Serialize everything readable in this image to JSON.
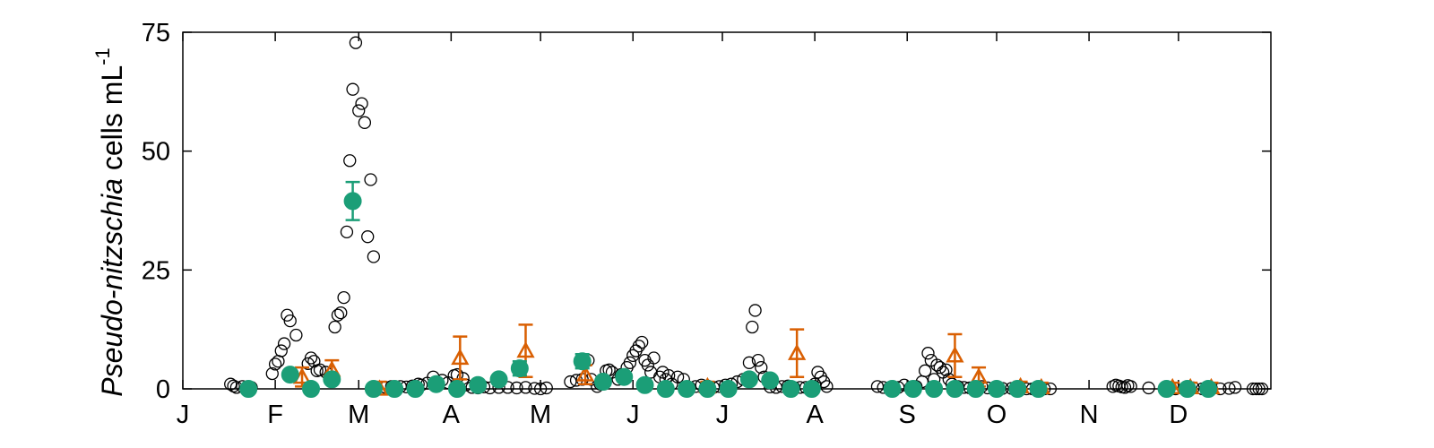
{
  "chart_data": {
    "type": "scatter",
    "title": "",
    "xlabel": "",
    "ylabel": {
      "italic": "Pseudo-nitzschia",
      "rest": " cells mL",
      "sup": "-1"
    },
    "x_unit": "day of year",
    "xlim": [
      0,
      365
    ],
    "ylim": [
      0,
      75
    ],
    "yticks": [
      0,
      25,
      50,
      75
    ],
    "xtick_labels": [
      {
        "label": "J",
        "x": 0
      },
      {
        "label": "F",
        "x": 31
      },
      {
        "label": "M",
        "x": 59
      },
      {
        "label": "A",
        "x": 90
      },
      {
        "label": "M",
        "x": 120
      },
      {
        "label": "J",
        "x": 151
      },
      {
        "label": "J",
        "x": 181
      },
      {
        "label": "A",
        "x": 212
      },
      {
        "label": "S",
        "x": 243
      },
      {
        "label": "O",
        "x": 273
      },
      {
        "label": "N",
        "x": 304
      },
      {
        "label": "D",
        "x": 334
      }
    ],
    "grid": false,
    "legend": "none",
    "colors": {
      "open": "#000000",
      "orange": "#d95f02",
      "green": "#1b9e77"
    },
    "series": [
      {
        "marker": "open-circle",
        "points": [
          [
            16,
            1.0
          ],
          [
            17,
            0.6
          ],
          [
            18,
            0.3
          ],
          [
            20,
            0.5
          ],
          [
            22,
            0.4
          ],
          [
            23,
            0.3
          ],
          [
            30,
            3.2
          ],
          [
            31,
            5.2
          ],
          [
            32,
            5.8
          ],
          [
            33,
            8.0
          ],
          [
            34,
            9.5
          ],
          [
            35,
            15.5
          ],
          [
            36,
            14.3
          ],
          [
            38,
            11.3
          ],
          [
            42,
            5.3
          ],
          [
            43,
            6.5
          ],
          [
            44,
            5.8
          ],
          [
            45,
            3.8
          ],
          [
            46,
            4.0
          ],
          [
            48,
            3.5
          ],
          [
            51,
            13.0
          ],
          [
            52,
            15.5
          ],
          [
            53,
            16.0
          ],
          [
            54,
            19.2
          ],
          [
            55,
            33.0
          ],
          [
            56,
            48.0
          ],
          [
            57,
            63.0
          ],
          [
            58,
            72.8
          ],
          [
            59,
            58.5
          ],
          [
            60,
            60.0
          ],
          [
            61,
            56.0
          ],
          [
            62,
            32.0
          ],
          [
            63,
            44.0
          ],
          [
            64,
            27.8
          ],
          [
            68,
            0.3
          ],
          [
            70,
            0.5
          ],
          [
            73,
            0.5
          ],
          [
            75,
            0.4
          ],
          [
            77,
            0.6
          ],
          [
            79,
            1.0
          ],
          [
            80,
            0.8
          ],
          [
            82,
            1.2
          ],
          [
            84,
            2.5
          ],
          [
            85,
            1.5
          ],
          [
            87,
            1.8
          ],
          [
            89,
            1.3
          ],
          [
            91,
            2.8
          ],
          [
            92,
            3.0
          ],
          [
            94,
            2.2
          ],
          [
            95,
            0.8
          ],
          [
            97,
            0.3
          ],
          [
            99,
            0.2
          ],
          [
            101,
            0.4
          ],
          [
            103,
            0.2
          ],
          [
            106,
            0.3
          ],
          [
            109,
            0.3
          ],
          [
            112,
            0.2
          ],
          [
            115,
            0.3
          ],
          [
            118,
            0.1
          ],
          [
            120,
            0.0
          ],
          [
            122,
            0.2
          ],
          [
            130,
            1.5
          ],
          [
            132,
            1.8
          ],
          [
            134,
            2.0
          ],
          [
            136,
            6.0
          ],
          [
            137,
            2.0
          ],
          [
            139,
            0.5
          ],
          [
            140,
            1.0
          ],
          [
            142,
            3.8
          ],
          [
            143,
            4.0
          ],
          [
            144,
            3.5
          ],
          [
            146,
            2.0
          ],
          [
            147,
            3.0
          ],
          [
            149,
            4.5
          ],
          [
            150,
            5.5
          ],
          [
            151,
            7.0
          ],
          [
            152,
            8.0
          ],
          [
            153,
            9.0
          ],
          [
            154,
            9.8
          ],
          [
            155,
            6.0
          ],
          [
            156,
            5.0
          ],
          [
            157,
            3.5
          ],
          [
            158,
            6.5
          ],
          [
            160,
            2.5
          ],
          [
            161,
            3.5
          ],
          [
            162,
            2.0
          ],
          [
            163,
            2.8
          ],
          [
            164,
            1.0
          ],
          [
            166,
            2.5
          ],
          [
            168,
            2.0
          ],
          [
            170,
            0.3
          ],
          [
            172,
            0.5
          ],
          [
            174,
            0.8
          ],
          [
            176,
            0.6
          ],
          [
            178,
            0.3
          ],
          [
            180,
            0.5
          ],
          [
            182,
            0.8
          ],
          [
            184,
            1.0
          ],
          [
            186,
            1.5
          ],
          [
            188,
            2.0
          ],
          [
            190,
            5.5
          ],
          [
            191,
            13.0
          ],
          [
            192,
            16.5
          ],
          [
            193,
            6.0
          ],
          [
            194,
            4.5
          ],
          [
            195,
            2.5
          ],
          [
            197,
            0.4
          ],
          [
            199,
            0.3
          ],
          [
            201,
            0.5
          ],
          [
            203,
            0.6
          ],
          [
            205,
            0.3
          ],
          [
            207,
            0.3
          ],
          [
            209,
            0.3
          ],
          [
            212,
            1.0
          ],
          [
            213,
            3.5
          ],
          [
            214,
            2.5
          ],
          [
            215,
            1.5
          ],
          [
            216,
            0.5
          ],
          [
            233,
            0.5
          ],
          [
            235,
            0.3
          ],
          [
            237,
            0.2
          ],
          [
            240,
            0.3
          ],
          [
            242,
            0.8
          ],
          [
            244,
            0.2
          ],
          [
            246,
            0.5
          ],
          [
            248,
            1.5
          ],
          [
            249,
            3.8
          ],
          [
            250,
            7.5
          ],
          [
            251,
            6.0
          ],
          [
            252,
            2.0
          ],
          [
            253,
            5.0
          ],
          [
            254,
            4.5
          ],
          [
            255,
            3.5
          ],
          [
            256,
            4.0
          ],
          [
            257,
            2.0
          ],
          [
            258,
            1.0
          ],
          [
            260,
            0.5
          ],
          [
            262,
            0.3
          ],
          [
            264,
            0.2
          ],
          [
            266,
            0.3
          ],
          [
            268,
            0.5
          ],
          [
            270,
            0.2
          ],
          [
            273,
            0.2
          ],
          [
            275,
            0.1
          ],
          [
            278,
            0.1
          ],
          [
            281,
            0.0
          ],
          [
            283,
            0.0
          ],
          [
            285,
            0.0
          ],
          [
            287,
            0.0
          ],
          [
            289,
            0.0
          ],
          [
            291,
            0.0
          ],
          [
            312,
            0.5
          ],
          [
            313,
            0.8
          ],
          [
            314,
            0.6
          ],
          [
            315,
            0.4
          ],
          [
            316,
            0.3
          ],
          [
            317,
            0.7
          ],
          [
            318,
            0.5
          ],
          [
            324,
            0.2
          ],
          [
            331,
            0.2
          ],
          [
            333,
            0.0
          ],
          [
            336,
            0.1
          ],
          [
            339,
            0.2
          ],
          [
            342,
            0.0
          ],
          [
            345,
            0.2
          ],
          [
            348,
            0.0
          ],
          [
            351,
            0.1
          ],
          [
            353,
            0.3
          ],
          [
            359,
            0.0
          ],
          [
            360,
            0.0
          ],
          [
            361,
            0.0
          ],
          [
            362,
            0.0
          ]
        ]
      },
      {
        "marker": "open-triangle-errorbar",
        "points": [
          {
            "x": 40,
            "y": 2.5,
            "err": 2.0
          },
          {
            "x": 50,
            "y": 4.0,
            "err": 2.0
          },
          {
            "x": 66,
            "y": 0.0,
            "err": 1.5
          },
          {
            "x": 93,
            "y": 6.5,
            "err": 4.5
          },
          {
            "x": 115,
            "y": 8.0,
            "err": 5.5
          },
          {
            "x": 135,
            "y": 3.0,
            "err": 2.0
          },
          {
            "x": 176,
            "y": 0.5,
            "err": 1.0
          },
          {
            "x": 206,
            "y": 7.5,
            "err": 5.0
          },
          {
            "x": 259,
            "y": 7.0,
            "err": 4.5
          },
          {
            "x": 267,
            "y": 2.5,
            "err": 2.0
          },
          {
            "x": 281,
            "y": 0.5,
            "err": 1.0
          },
          {
            "x": 288,
            "y": 0.3,
            "err": 1.0
          },
          {
            "x": 332,
            "y": 0.3,
            "err": 1.0
          },
          {
            "x": 338,
            "y": 0.3,
            "err": 1.0
          },
          {
            "x": 345,
            "y": 0.3,
            "err": 1.0
          }
        ]
      },
      {
        "marker": "filled-circle-errorbar",
        "points": [
          {
            "x": 22,
            "y": 0.0,
            "err": 0
          },
          {
            "x": 36,
            "y": 3.0,
            "err": 0
          },
          {
            "x": 43,
            "y": 0.0,
            "err": 0
          },
          {
            "x": 50,
            "y": 2.0,
            "err": 0
          },
          {
            "x": 57,
            "y": 39.5,
            "err": 4.0
          },
          {
            "x": 64,
            "y": 0.0,
            "err": 0
          },
          {
            "x": 71,
            "y": 0.0,
            "err": 0
          },
          {
            "x": 78,
            "y": 0.0,
            "err": 0
          },
          {
            "x": 85,
            "y": 1.0,
            "err": 0
          },
          {
            "x": 92,
            "y": 0.0,
            "err": 0
          },
          {
            "x": 99,
            "y": 0.8,
            "err": 0
          },
          {
            "x": 106,
            "y": 2.0,
            "err": 0
          },
          {
            "x": 113,
            "y": 4.3,
            "err": 1.5
          },
          {
            "x": 134,
            "y": 5.8,
            "err": 1.5
          },
          {
            "x": 141,
            "y": 1.5,
            "err": 0
          },
          {
            "x": 148,
            "y": 2.5,
            "err": 0
          },
          {
            "x": 155,
            "y": 0.8,
            "err": 0
          },
          {
            "x": 162,
            "y": 0.0,
            "err": 0
          },
          {
            "x": 169,
            "y": 0.0,
            "err": 0
          },
          {
            "x": 176,
            "y": 0.0,
            "err": 0
          },
          {
            "x": 183,
            "y": 0.0,
            "err": 0
          },
          {
            "x": 190,
            "y": 2.0,
            "err": 0
          },
          {
            "x": 197,
            "y": 1.8,
            "err": 0
          },
          {
            "x": 204,
            "y": 0.0,
            "err": 0
          },
          {
            "x": 211,
            "y": 0.0,
            "err": 0
          },
          {
            "x": 238,
            "y": 0.0,
            "err": 0
          },
          {
            "x": 245,
            "y": 0.0,
            "err": 0
          },
          {
            "x": 252,
            "y": 0.0,
            "err": 0
          },
          {
            "x": 259,
            "y": 0.0,
            "err": 0
          },
          {
            "x": 266,
            "y": 0.0,
            "err": 0
          },
          {
            "x": 273,
            "y": 0.0,
            "err": 0
          },
          {
            "x": 280,
            "y": 0.0,
            "err": 0
          },
          {
            "x": 287,
            "y": 0.0,
            "err": 0
          },
          {
            "x": 330,
            "y": 0.0,
            "err": 0
          },
          {
            "x": 337,
            "y": 0.0,
            "err": 0
          },
          {
            "x": 344,
            "y": 0.0,
            "err": 0
          }
        ]
      }
    ]
  }
}
